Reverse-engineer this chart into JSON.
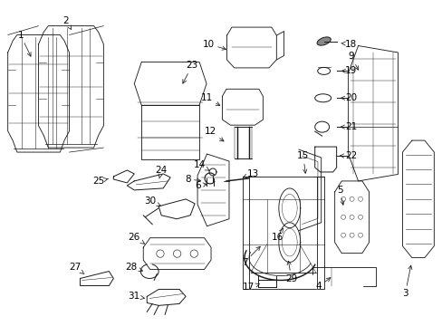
{
  "bg_color": "#ffffff",
  "line_color": "#1a1a1a",
  "label_color": "#000000",
  "fig_width": 4.89,
  "fig_height": 3.6,
  "dpi": 100,
  "font_size": 7.5,
  "lw": 0.7
}
